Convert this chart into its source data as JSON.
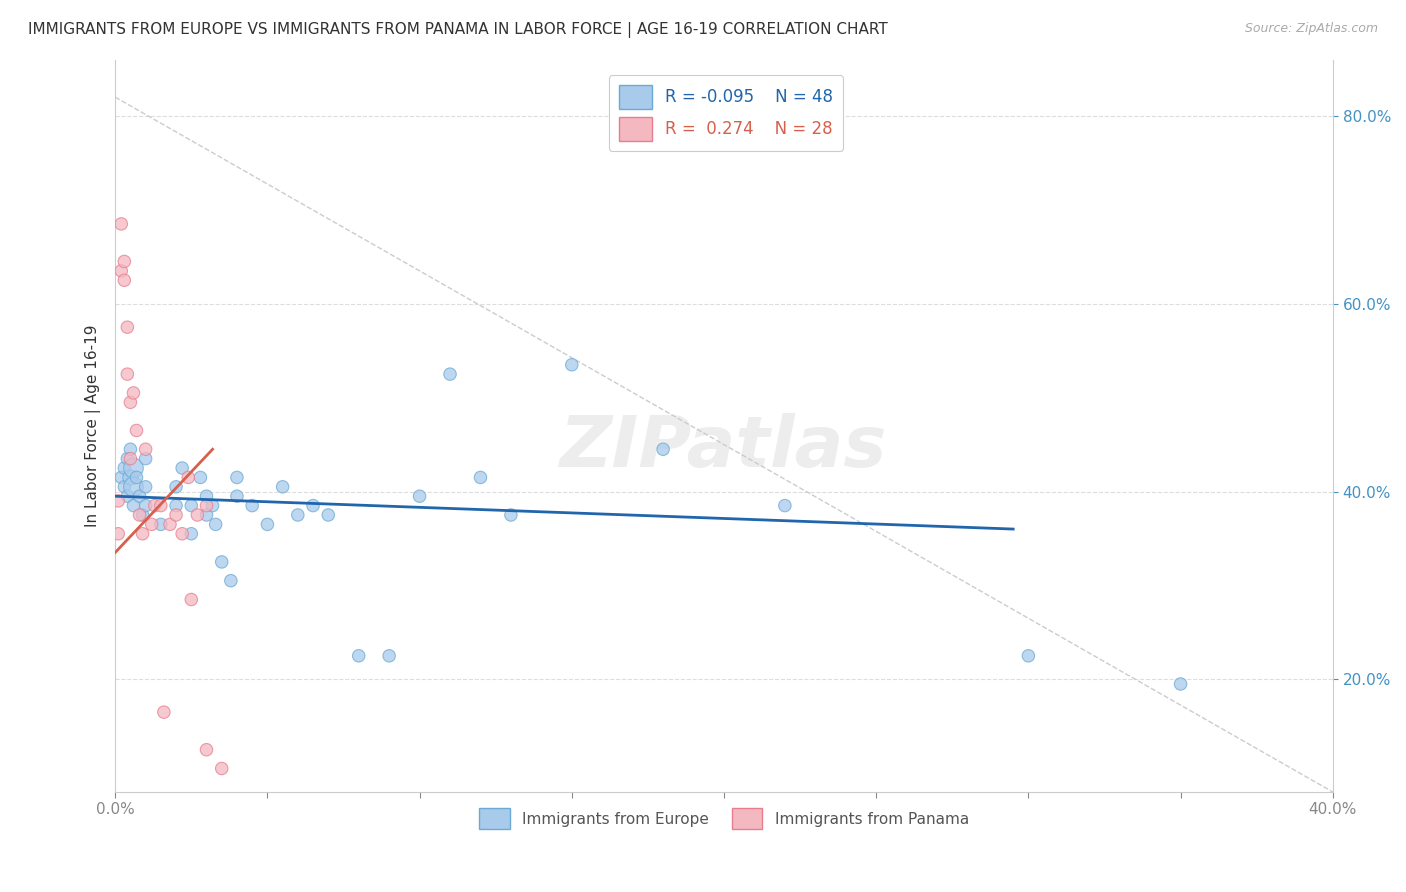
{
  "title": "IMMIGRANTS FROM EUROPE VS IMMIGRANTS FROM PANAMA IN LABOR FORCE | AGE 16-19 CORRELATION CHART",
  "source": "Source: ZipAtlas.com",
  "ylabel": "In Labor Force | Age 16-19",
  "xlim": [
    0.0,
    0.4
  ],
  "ylim": [
    0.08,
    0.86
  ],
  "xtick_positions": [
    0.0,
    0.05,
    0.1,
    0.15,
    0.2,
    0.25,
    0.3,
    0.35,
    0.4
  ],
  "xtick_labels_show": [
    "0.0%",
    "",
    "",
    "",
    "",
    "",
    "",
    "",
    "40.0%"
  ],
  "yticks": [
    0.2,
    0.4,
    0.6,
    0.8
  ],
  "blue_R": -0.095,
  "blue_N": 48,
  "pink_R": 0.274,
  "pink_N": 28,
  "blue_color": "#a8caeb",
  "blue_edge": "#6aaad4",
  "pink_color": "#f4b8c1",
  "pink_edge": "#e87d8e",
  "blue_scatter_x": [
    0.002,
    0.003,
    0.003,
    0.004,
    0.004,
    0.005,
    0.005,
    0.006,
    0.006,
    0.006,
    0.007,
    0.008,
    0.009,
    0.01,
    0.01,
    0.01,
    0.015,
    0.02,
    0.02,
    0.022,
    0.025,
    0.025,
    0.028,
    0.03,
    0.03,
    0.032,
    0.033,
    0.035,
    0.038,
    0.04,
    0.04,
    0.045,
    0.05,
    0.055,
    0.06,
    0.065,
    0.07,
    0.08,
    0.09,
    0.1,
    0.11,
    0.12,
    0.13,
    0.15,
    0.18,
    0.22,
    0.3,
    0.35
  ],
  "blue_scatter_y": [
    0.415,
    0.425,
    0.405,
    0.435,
    0.395,
    0.445,
    0.415,
    0.425,
    0.405,
    0.385,
    0.415,
    0.395,
    0.375,
    0.405,
    0.385,
    0.435,
    0.365,
    0.405,
    0.385,
    0.425,
    0.385,
    0.355,
    0.415,
    0.395,
    0.375,
    0.385,
    0.365,
    0.325,
    0.305,
    0.415,
    0.395,
    0.385,
    0.365,
    0.405,
    0.375,
    0.385,
    0.375,
    0.225,
    0.225,
    0.395,
    0.525,
    0.415,
    0.375,
    0.535,
    0.445,
    0.385,
    0.225,
    0.195
  ],
  "blue_scatter_s": [
    80,
    80,
    80,
    80,
    80,
    80,
    120,
    200,
    200,
    80,
    80,
    80,
    80,
    80,
    80,
    80,
    80,
    80,
    80,
    80,
    80,
    80,
    80,
    80,
    80,
    80,
    80,
    80,
    80,
    80,
    80,
    80,
    80,
    80,
    80,
    80,
    80,
    80,
    80,
    80,
    80,
    80,
    80,
    80,
    80,
    80,
    80,
    80
  ],
  "pink_scatter_x": [
    0.001,
    0.001,
    0.002,
    0.002,
    0.003,
    0.003,
    0.004,
    0.004,
    0.005,
    0.005,
    0.006,
    0.007,
    0.008,
    0.009,
    0.01,
    0.012,
    0.013,
    0.015,
    0.016,
    0.018,
    0.02,
    0.022,
    0.024,
    0.025,
    0.027,
    0.03,
    0.03,
    0.035
  ],
  "pink_scatter_y": [
    0.39,
    0.355,
    0.685,
    0.635,
    0.645,
    0.625,
    0.575,
    0.525,
    0.495,
    0.435,
    0.505,
    0.465,
    0.375,
    0.355,
    0.445,
    0.365,
    0.385,
    0.385,
    0.165,
    0.365,
    0.375,
    0.355,
    0.415,
    0.285,
    0.375,
    0.385,
    0.125,
    0.105
  ],
  "pink_scatter_s": [
    80,
    80,
    80,
    80,
    80,
    80,
    80,
    80,
    80,
    80,
    80,
    80,
    80,
    80,
    80,
    80,
    80,
    80,
    80,
    80,
    80,
    80,
    80,
    80,
    80,
    80,
    80,
    80
  ],
  "blue_trend_x": [
    0.0,
    0.295
  ],
  "blue_trend_y": [
    0.395,
    0.36
  ],
  "pink_trend_x": [
    0.0,
    0.032
  ],
  "pink_trend_y": [
    0.335,
    0.445
  ],
  "ref_line_x": [
    0.0,
    0.4
  ],
  "ref_line_y": [
    0.82,
    0.08
  ],
  "watermark": "ZIPatlas",
  "legend1_label_blue": "R = -0.095    N = 48",
  "legend1_label_pink": "R =  0.274    N = 28",
  "legend2_label_blue": "Immigrants from Europe",
  "legend2_label_pink": "Immigrants from Panama"
}
